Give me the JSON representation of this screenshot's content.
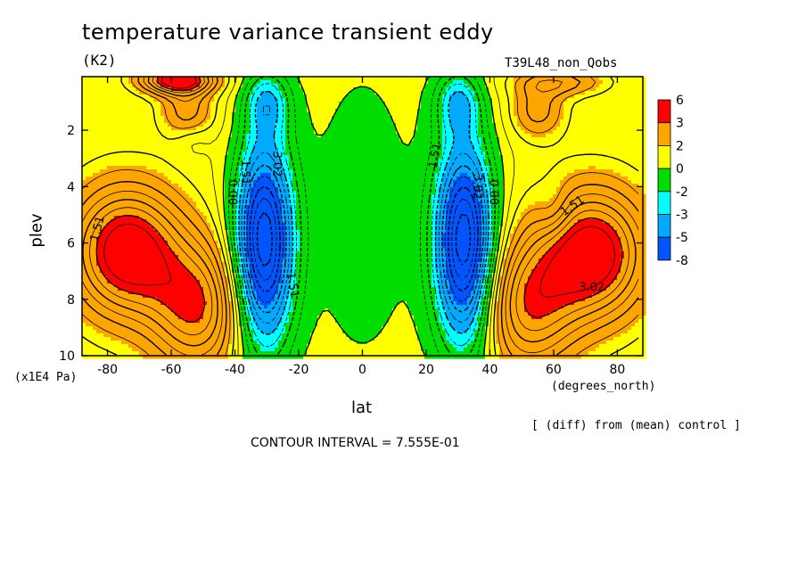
{
  "header": {
    "title": "temperature variance transient eddy",
    "units": "(K2)",
    "run_id": "T39L48_non_Qobs"
  },
  "footer": {
    "contour_interval": "CONTOUR INTERVAL = 7.555E-01",
    "comparison_note": "[ (diff) from (mean) control ]"
  },
  "chart_data": {
    "type": "heatmap",
    "title": "temperature variance transient eddy",
    "units": "(K2)",
    "xlabel": "lat",
    "x_units": "(degrees_north)",
    "ylabel": "plev",
    "y_scale_note": "(x1E4 Pa)",
    "xlim": [
      -88,
      88
    ],
    "ylim": [
      10,
      0.1
    ],
    "x_ticks": [
      -80,
      -60,
      -40,
      -20,
      0,
      20,
      40,
      60,
      80
    ],
    "y_ticks": [
      2,
      4,
      6,
      8,
      10
    ],
    "x_tick_labels": [
      "-80",
      "-60",
      "-40",
      "-20",
      "0",
      "20",
      "40",
      "60",
      "80"
    ],
    "y_tick_labels": [
      "2",
      "4",
      "6",
      "8",
      "10"
    ],
    "contour_interval": 0.7555,
    "color_levels": [
      {
        "min": 6,
        "max": null,
        "color": "#ff0000"
      },
      {
        "min": 3,
        "max": 6,
        "color": "#ffa500"
      },
      {
        "min": 2,
        "max": 3,
        "color": "#ffa500"
      },
      {
        "min": 0,
        "max": 2,
        "color": "#ffff00"
      },
      {
        "min": -2,
        "max": 0,
        "color": "#00dd00"
      },
      {
        "min": -3,
        "max": -2,
        "color": "#00ffff"
      },
      {
        "min": -5,
        "max": -3,
        "color": "#00aaff"
      },
      {
        "min": null,
        "max": -8,
        "color": "#0055ff"
      }
    ],
    "colorbar_labels": [
      "6",
      "3",
      "2",
      "0",
      "-2",
      "-3",
      "-5",
      "-8"
    ],
    "colorbar_colors": [
      "#ff0000",
      "#ffa500",
      "#ffff00",
      "#00dd00",
      "#00ffff",
      "#00aaff",
      "#0055ff"
    ],
    "contour_labels": [
      {
        "text": "1.51",
        "lat": -83,
        "plev": 5.5,
        "angle": -75
      },
      {
        "text": "1.51",
        "lat": -37,
        "plev": 3.5,
        "angle": 90
      },
      {
        "text": "0.00",
        "lat": -41,
        "plev": 4.2,
        "angle": 90
      },
      {
        "text": "3.02",
        "lat": -27,
        "plev": 3.2,
        "angle": 90
      },
      {
        "text": "1.51",
        "lat": -22,
        "plev": 7.5,
        "angle": 80
      },
      {
        "text": "1.51",
        "lat": 23,
        "plev": 2.9,
        "angle": -80
      },
      {
        "text": "3.02",
        "lat": 36,
        "plev": 4.0,
        "angle": 90
      },
      {
        "text": "0.00",
        "lat": 41,
        "plev": 4.2,
        "angle": 90
      },
      {
        "text": "1.51",
        "lat": 66,
        "plev": 4.7,
        "angle": -35
      },
      {
        "text": "3.02",
        "lat": 72,
        "plev": 7.6,
        "angle": 0
      }
    ],
    "field_centers": [
      {
        "lat": -74,
        "plev": 6.3,
        "amp": 7.0,
        "slat": 12,
        "splev": 1.6
      },
      {
        "lat": -52,
        "plev": 8.3,
        "amp": 5.0,
        "slat": 10,
        "splev": 1.6
      },
      {
        "lat": 72,
        "plev": 6.4,
        "amp": 7.0,
        "slat": 12,
        "splev": 1.6
      },
      {
        "lat": 52,
        "plev": 8.3,
        "amp": 4.5,
        "slat": 10,
        "splev": 1.6
      },
      {
        "lat": -31,
        "plev": 6.0,
        "amp": -9.0,
        "slat": 6.5,
        "splev": 2.6
      },
      {
        "lat": 32,
        "plev": 6.0,
        "amp": -9.0,
        "slat": 6.5,
        "splev": 2.6
      },
      {
        "lat": -30,
        "plev": 1.0,
        "amp": -3.0,
        "slat": 5,
        "splev": 0.8
      },
      {
        "lat": 30,
        "plev": 1.0,
        "amp": -3.0,
        "slat": 5,
        "splev": 0.8
      },
      {
        "lat": -58,
        "plev": 0.2,
        "amp": 7.0,
        "slat": 8,
        "splev": 0.35
      },
      {
        "lat": 62,
        "plev": 0.3,
        "amp": 2.5,
        "slat": 10,
        "splev": 0.35
      },
      {
        "lat": -55,
        "plev": 1.3,
        "amp": 2.5,
        "slat": 6,
        "splev": 0.7
      },
      {
        "lat": 55,
        "plev": 1.3,
        "amp": 2.5,
        "slat": 6,
        "splev": 0.7
      },
      {
        "lat": 0,
        "plev": 5.0,
        "amp": -1.2,
        "slat": 18,
        "splev": 6.0
      },
      {
        "lat": 60,
        "plev": 4.9,
        "amp": -1.2,
        "slat": 4,
        "splev": 0.7
      },
      {
        "lat": -53,
        "plev": 2.4,
        "amp": -0.8,
        "slat": 4,
        "splev": 0.4
      }
    ]
  }
}
